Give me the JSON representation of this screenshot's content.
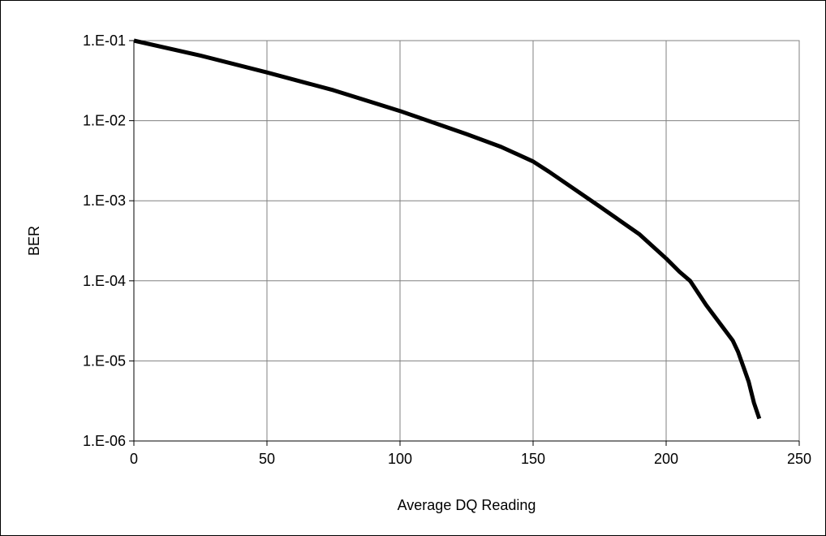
{
  "chart_data": {
    "type": "line",
    "title": "",
    "xlabel": "Average DQ Reading",
    "ylabel": "BER",
    "xlim": [
      0,
      250
    ],
    "ylim": [
      1e-06,
      0.1
    ],
    "y_scale": "log",
    "grid": true,
    "legend": "none",
    "x_ticks": [
      0,
      50,
      100,
      150,
      200,
      250
    ],
    "x_tick_labels": [
      "0",
      "50",
      "100",
      "150",
      "200",
      "250"
    ],
    "y_ticks": [
      0.1,
      0.01,
      0.001,
      0.0001,
      1e-05,
      1e-06
    ],
    "y_tick_labels": [
      "1.E-01",
      "1.E-02",
      "1.E-03",
      "1.E-04",
      "1.E-05",
      "1.E-06"
    ],
    "series": [
      {
        "color": "#000000",
        "x": [
          0,
          25,
          50,
          75,
          100,
          125,
          138,
          150,
          156,
          175,
          190,
          200,
          205,
          209,
          215,
          220,
          225,
          227,
          229,
          231,
          233,
          235
        ],
        "y": [
          0.1,
          0.065,
          0.04,
          0.024,
          0.0132,
          0.0068,
          0.0047,
          0.0031,
          0.0023,
          0.00085,
          0.00038,
          0.00019,
          0.00013,
          0.0001,
          5e-05,
          3e-05,
          1.8e-05,
          1.3e-05,
          8.5e-06,
          5.5e-06,
          3e-06,
          1.9e-06
        ]
      }
    ]
  }
}
